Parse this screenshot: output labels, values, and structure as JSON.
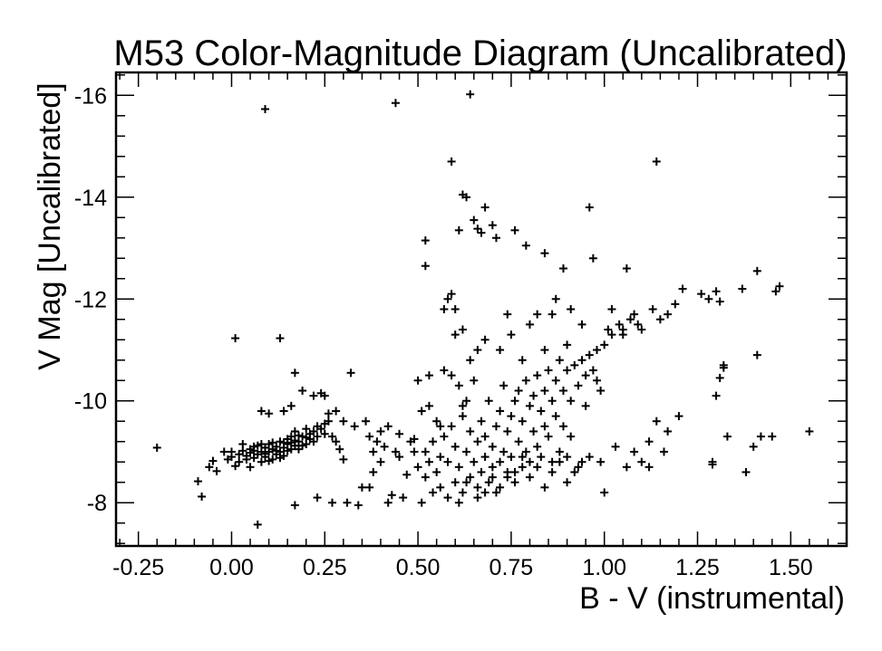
{
  "chart_data": {
    "type": "scatter",
    "title": "M53 Color-Magnitude Diagram (Uncalibrated)",
    "xlabel": "B - V (instrumental)",
    "ylabel": "V Mag [Uncalibrated]",
    "xlim": [
      -0.31,
      1.65
    ],
    "ylim": [
      -7.15,
      -16.45
    ],
    "xticks": [
      -0.25,
      0.0,
      0.25,
      0.5,
      0.75,
      1.0,
      1.25,
      1.5
    ],
    "xtick_labels": [
      "-0.25",
      "0.00",
      "0.25",
      "0.50",
      "0.75",
      "1.00",
      "1.25",
      "1.50"
    ],
    "yticks": [
      -8,
      -10,
      -12,
      -14,
      -16
    ],
    "ytick_labels": [
      "-8",
      "-10",
      "-12",
      "-14",
      "-16"
    ],
    "grid": false,
    "marker": "+",
    "points": [
      [
        -0.2,
        -9.08
      ],
      [
        -0.09,
        -8.42
      ],
      [
        -0.08,
        -8.12
      ],
      [
        -0.06,
        -8.7
      ],
      [
        -0.05,
        -8.82
      ],
      [
        -0.04,
        -8.62
      ],
      [
        -0.02,
        -9.0
      ],
      [
        -0.01,
        -8.85
      ],
      [
        0.0,
        -8.9
      ],
      [
        0.0,
        -9.0
      ],
      [
        0.01,
        -8.72
      ],
      [
        0.02,
        -8.95
      ],
      [
        0.02,
        -8.8
      ],
      [
        0.03,
        -9.02
      ],
      [
        0.04,
        -8.92
      ],
      [
        0.05,
        -9.05
      ],
      [
        0.05,
        -8.7
      ],
      [
        0.06,
        -8.88
      ],
      [
        0.06,
        -9.1
      ],
      [
        0.07,
        -8.95
      ],
      [
        0.08,
        -9.0
      ],
      [
        0.08,
        -8.8
      ],
      [
        0.09,
        -9.08
      ],
      [
        0.09,
        -8.9
      ],
      [
        0.1,
        -9.0
      ],
      [
        0.1,
        -9.15
      ],
      [
        0.11,
        -8.85
      ],
      [
        0.11,
        -9.05
      ],
      [
        0.12,
        -9.1
      ],
      [
        0.12,
        -8.95
      ],
      [
        0.13,
        -9.2
      ],
      [
        0.13,
        -9.0
      ],
      [
        0.14,
        -9.08
      ],
      [
        0.14,
        -8.92
      ],
      [
        0.15,
        -9.15
      ],
      [
        0.15,
        -9.25
      ],
      [
        0.16,
        -9.05
      ],
      [
        0.16,
        -9.3
      ],
      [
        0.17,
        -9.12
      ],
      [
        0.17,
        -9.4
      ],
      [
        0.18,
        -9.2
      ],
      [
        0.18,
        -9.05
      ],
      [
        0.19,
        -9.3
      ],
      [
        0.2,
        -9.15
      ],
      [
        0.2,
        -9.45
      ],
      [
        0.21,
        -9.25
      ],
      [
        0.21,
        -9.35
      ],
      [
        0.22,
        -9.4
      ],
      [
        0.22,
        -9.2
      ],
      [
        0.23,
        -9.5
      ],
      [
        0.23,
        -9.3
      ],
      [
        0.24,
        -9.45
      ],
      [
        0.25,
        -9.55
      ],
      [
        0.25,
        -9.35
      ],
      [
        0.26,
        -9.6
      ],
      [
        0.27,
        -9.3
      ],
      [
        0.28,
        -9.2
      ],
      [
        0.29,
        -9.05
      ],
      [
        0.3,
        -8.85
      ],
      [
        0.03,
        -9.15
      ],
      [
        0.05,
        -8.98
      ],
      [
        0.07,
        -9.12
      ],
      [
        0.09,
        -8.96
      ],
      [
        0.11,
        -9.18
      ],
      [
        0.13,
        -8.88
      ],
      [
        0.15,
        -9.02
      ],
      [
        0.17,
        -9.22
      ],
      [
        0.19,
        -9.12
      ],
      [
        0.04,
        -8.85
      ],
      [
        0.06,
        -9.02
      ],
      [
        0.08,
        -9.15
      ],
      [
        0.1,
        -8.82
      ],
      [
        0.12,
        -9.02
      ],
      [
        0.14,
        -9.18
      ],
      [
        0.16,
        -9.18
      ],
      [
        0.18,
        -9.32
      ],
      [
        0.2,
        -9.28
      ],
      [
        0.01,
        -11.23
      ],
      [
        0.13,
        -11.23
      ],
      [
        0.08,
        -9.8
      ],
      [
        0.1,
        -9.75
      ],
      [
        0.14,
        -9.8
      ],
      [
        0.16,
        -9.9
      ],
      [
        0.17,
        -10.55
      ],
      [
        0.19,
        -10.2
      ],
      [
        0.22,
        -10.1
      ],
      [
        0.24,
        -10.15
      ],
      [
        0.25,
        -10.1
      ],
      [
        0.26,
        -9.75
      ],
      [
        0.28,
        -9.8
      ],
      [
        0.3,
        -9.6
      ],
      [
        0.33,
        -9.5
      ],
      [
        0.32,
        -10.55
      ],
      [
        0.36,
        -9.6
      ],
      [
        0.37,
        -9.3
      ],
      [
        0.07,
        -7.57
      ],
      [
        0.17,
        -7.95
      ],
      [
        0.23,
        -8.1
      ],
      [
        0.27,
        -8.0
      ],
      [
        0.31,
        -8.0
      ],
      [
        0.34,
        -7.95
      ],
      [
        0.35,
        -8.3
      ],
      [
        0.37,
        -8.3
      ],
      [
        0.38,
        -8.6
      ],
      [
        0.38,
        -9.0
      ],
      [
        0.39,
        -9.2
      ],
      [
        0.4,
        -9.4
      ],
      [
        0.4,
        -8.8
      ],
      [
        0.41,
        -9.1
      ],
      [
        0.42,
        -9.5
      ],
      [
        0.42,
        -8.0
      ],
      [
        0.43,
        -8.15
      ],
      [
        0.44,
        -9.0
      ],
      [
        0.45,
        -8.9
      ],
      [
        0.45,
        -9.35
      ],
      [
        0.46,
        -8.1
      ],
      [
        0.47,
        -8.55
      ],
      [
        0.48,
        -9.2
      ],
      [
        0.49,
        -9.0
      ],
      [
        0.49,
        -9.25
      ],
      [
        0.5,
        -8.7
      ],
      [
        0.5,
        -10.4
      ],
      [
        0.51,
        -9.8
      ],
      [
        0.51,
        -8.0
      ],
      [
        0.52,
        -8.5
      ],
      [
        0.52,
        -9.0
      ],
      [
        0.53,
        -8.8
      ],
      [
        0.53,
        -10.5
      ],
      [
        0.54,
        -8.2
      ],
      [
        0.54,
        -9.2
      ],
      [
        0.55,
        -8.6
      ],
      [
        0.55,
        -9.6
      ],
      [
        0.56,
        -8.9
      ],
      [
        0.56,
        -8.3
      ],
      [
        0.57,
        -10.6
      ],
      [
        0.57,
        -9.3
      ],
      [
        0.58,
        -8.1
      ],
      [
        0.58,
        -8.8
      ],
      [
        0.59,
        -9.5
      ],
      [
        0.59,
        -10.5
      ],
      [
        0.6,
        -8.4
      ],
      [
        0.6,
        -9.1
      ],
      [
        0.6,
        -11.3
      ],
      [
        0.61,
        -10.3
      ],
      [
        0.61,
        -8.7
      ],
      [
        0.62,
        -9.7
      ],
      [
        0.62,
        -8.2
      ],
      [
        0.63,
        -9.0
      ],
      [
        0.63,
        -10.0
      ],
      [
        0.64,
        -8.5
      ],
      [
        0.64,
        -9.4
      ],
      [
        0.65,
        -8.8
      ],
      [
        0.65,
        -10.4
      ],
      [
        0.66,
        -9.2
      ],
      [
        0.66,
        -8.3
      ],
      [
        0.67,
        -9.6
      ],
      [
        0.67,
        -8.6
      ],
      [
        0.68,
        -8.9
      ],
      [
        0.68,
        -9.3
      ],
      [
        0.69,
        -10.0
      ],
      [
        0.69,
        -8.4
      ],
      [
        0.7,
        -9.1
      ],
      [
        0.7,
        -8.7
      ],
      [
        0.71,
        -9.5
      ],
      [
        0.71,
        -8.2
      ],
      [
        0.72,
        -9.8
      ],
      [
        0.72,
        -8.8
      ],
      [
        0.73,
        -9.0
      ],
      [
        0.73,
        -10.3
      ],
      [
        0.74,
        -8.5
      ],
      [
        0.74,
        -9.4
      ],
      [
        0.75,
        -9.7
      ],
      [
        0.75,
        -8.9
      ],
      [
        0.76,
        -10.0
      ],
      [
        0.76,
        -8.6
      ],
      [
        0.77,
        -9.2
      ],
      [
        0.77,
        -10.2
      ],
      [
        0.78,
        -8.7
      ],
      [
        0.78,
        -9.6
      ],
      [
        0.79,
        -10.4
      ],
      [
        0.79,
        -9.0
      ],
      [
        0.8,
        -9.9
      ],
      [
        0.8,
        -8.8
      ],
      [
        0.81,
        -10.1
      ],
      [
        0.81,
        -9.4
      ],
      [
        0.82,
        -10.5
      ],
      [
        0.82,
        -9.1
      ],
      [
        0.83,
        -9.8
      ],
      [
        0.83,
        -8.9
      ],
      [
        0.84,
        -10.2
      ],
      [
        0.84,
        -9.5
      ],
      [
        0.85,
        -10.6
      ],
      [
        0.85,
        -9.3
      ],
      [
        0.86,
        -10.0
      ],
      [
        0.86,
        -8.8
      ],
      [
        0.87,
        -10.4
      ],
      [
        0.87,
        -9.7
      ],
      [
        0.88,
        -10.8
      ],
      [
        0.88,
        -9.0
      ],
      [
        0.89,
        -10.2
      ],
      [
        0.89,
        -9.5
      ],
      [
        0.9,
        -10.6
      ],
      [
        0.9,
        -8.9
      ],
      [
        0.91,
        -10.0
      ],
      [
        0.91,
        -9.3
      ],
      [
        0.92,
        -10.7
      ],
      [
        0.93,
        -10.3
      ],
      [
        0.93,
        -8.7
      ],
      [
        0.94,
        -10.8
      ],
      [
        0.95,
        -9.9
      ],
      [
        0.95,
        -10.5
      ],
      [
        0.96,
        -10.9
      ],
      [
        0.97,
        -10.6
      ],
      [
        0.98,
        -11.0
      ],
      [
        0.99,
        -10.2
      ],
      [
        1.0,
        -11.1
      ],
      [
        0.61,
        -8.0
      ],
      [
        0.63,
        -8.4
      ],
      [
        0.66,
        -8.1
      ],
      [
        0.68,
        -8.2
      ],
      [
        0.7,
        -8.5
      ],
      [
        0.72,
        -8.3
      ],
      [
        0.74,
        -8.6
      ],
      [
        0.76,
        -8.4
      ],
      [
        0.78,
        -8.9
      ],
      [
        0.8,
        -8.5
      ],
      [
        0.82,
        -8.7
      ],
      [
        0.84,
        -8.3
      ],
      [
        0.86,
        -8.6
      ],
      [
        0.88,
        -8.8
      ],
      [
        0.9,
        -8.4
      ],
      [
        0.92,
        -8.6
      ],
      [
        0.94,
        -8.8
      ],
      [
        0.96,
        -8.9
      ],
      [
        0.99,
        -8.8
      ],
      [
        1.0,
        -8.2
      ],
      [
        1.03,
        -9.1
      ],
      [
        1.06,
        -8.7
      ],
      [
        1.08,
        -9.0
      ],
      [
        1.1,
        -8.8
      ],
      [
        1.12,
        -9.2
      ],
      [
        1.12,
        -8.7
      ],
      [
        1.14,
        -9.6
      ],
      [
        1.16,
        -9.0
      ],
      [
        1.17,
        -9.4
      ],
      [
        1.2,
        -9.7
      ],
      [
        1.29,
        -8.8
      ],
      [
        1.29,
        -8.75
      ],
      [
        1.3,
        -10.1
      ],
      [
        1.31,
        -10.45
      ],
      [
        1.32,
        -10.7
      ],
      [
        1.32,
        -10.65
      ],
      [
        1.33,
        -9.3
      ],
      [
        1.38,
        -8.6
      ],
      [
        1.4,
        -9.1
      ],
      [
        1.41,
        -10.9
      ],
      [
        1.42,
        -9.3
      ],
      [
        1.45,
        -9.3
      ],
      [
        1.55,
        -9.4
      ],
      [
        0.98,
        -10.4
      ],
      [
        1.01,
        -11.4
      ],
      [
        1.02,
        -11.3
      ],
      [
        1.04,
        -11.5
      ],
      [
        1.05,
        -11.3
      ],
      [
        1.07,
        -11.6
      ],
      [
        1.08,
        -11.7
      ],
      [
        1.09,
        -11.5
      ],
      [
        1.1,
        -11.4
      ],
      [
        1.13,
        -11.8
      ],
      [
        1.15,
        -11.6
      ],
      [
        1.17,
        -11.7
      ],
      [
        1.19,
        -11.9
      ],
      [
        1.21,
        -12.2
      ],
      [
        1.26,
        -12.1
      ],
      [
        1.28,
        -12.0
      ],
      [
        1.3,
        -12.15
      ],
      [
        1.31,
        -11.95
      ],
      [
        1.37,
        -12.2
      ],
      [
        1.41,
        -12.55
      ],
      [
        1.46,
        -12.15
      ],
      [
        1.47,
        -12.25
      ],
      [
        0.44,
        -15.85
      ],
      [
        0.64,
        -16.02
      ],
      [
        0.09,
        -15.73
      ],
      [
        0.59,
        -14.7
      ],
      [
        0.62,
        -14.05
      ],
      [
        0.63,
        -14.0
      ],
      [
        0.68,
        -13.8
      ],
      [
        0.65,
        -13.55
      ],
      [
        0.61,
        -13.35
      ],
      [
        0.66,
        -13.38
      ],
      [
        0.67,
        -13.3
      ],
      [
        0.7,
        -13.45
      ],
      [
        0.71,
        -13.2
      ],
      [
        0.76,
        -13.35
      ],
      [
        0.79,
        -13.05
      ],
      [
        0.84,
        -12.9
      ],
      [
        0.89,
        -12.6
      ],
      [
        0.52,
        -13.15
      ],
      [
        0.52,
        -12.65
      ],
      [
        0.58,
        -12.0
      ],
      [
        0.59,
        -12.1
      ],
      [
        0.6,
        -11.8
      ],
      [
        0.87,
        -12.0
      ],
      [
        0.86,
        -11.7
      ],
      [
        0.91,
        -11.8
      ],
      [
        0.96,
        -13.8
      ],
      [
        0.97,
        -12.8
      ],
      [
        1.06,
        -12.6
      ],
      [
        1.14,
        -14.7
      ],
      [
        0.74,
        -11.7
      ],
      [
        0.75,
        -11.3
      ],
      [
        0.8,
        -11.5
      ],
      [
        0.82,
        -11.7
      ],
      [
        0.94,
        -11.5
      ],
      [
        1.02,
        -11.8
      ],
      [
        0.57,
        -11.8
      ],
      [
        0.62,
        -11.4
      ],
      [
        0.68,
        -11.2
      ],
      [
        0.72,
        -11.0
      ],
      [
        0.78,
        -10.8
      ],
      [
        0.84,
        -11.0
      ],
      [
        0.9,
        -11.1
      ],
      [
        1.05,
        -11.4
      ],
      [
        0.64,
        -10.8
      ],
      [
        0.66,
        -11.0
      ],
      [
        0.62,
        -9.9
      ],
      [
        0.56,
        -9.5
      ],
      [
        0.53,
        -9.9
      ]
    ]
  }
}
